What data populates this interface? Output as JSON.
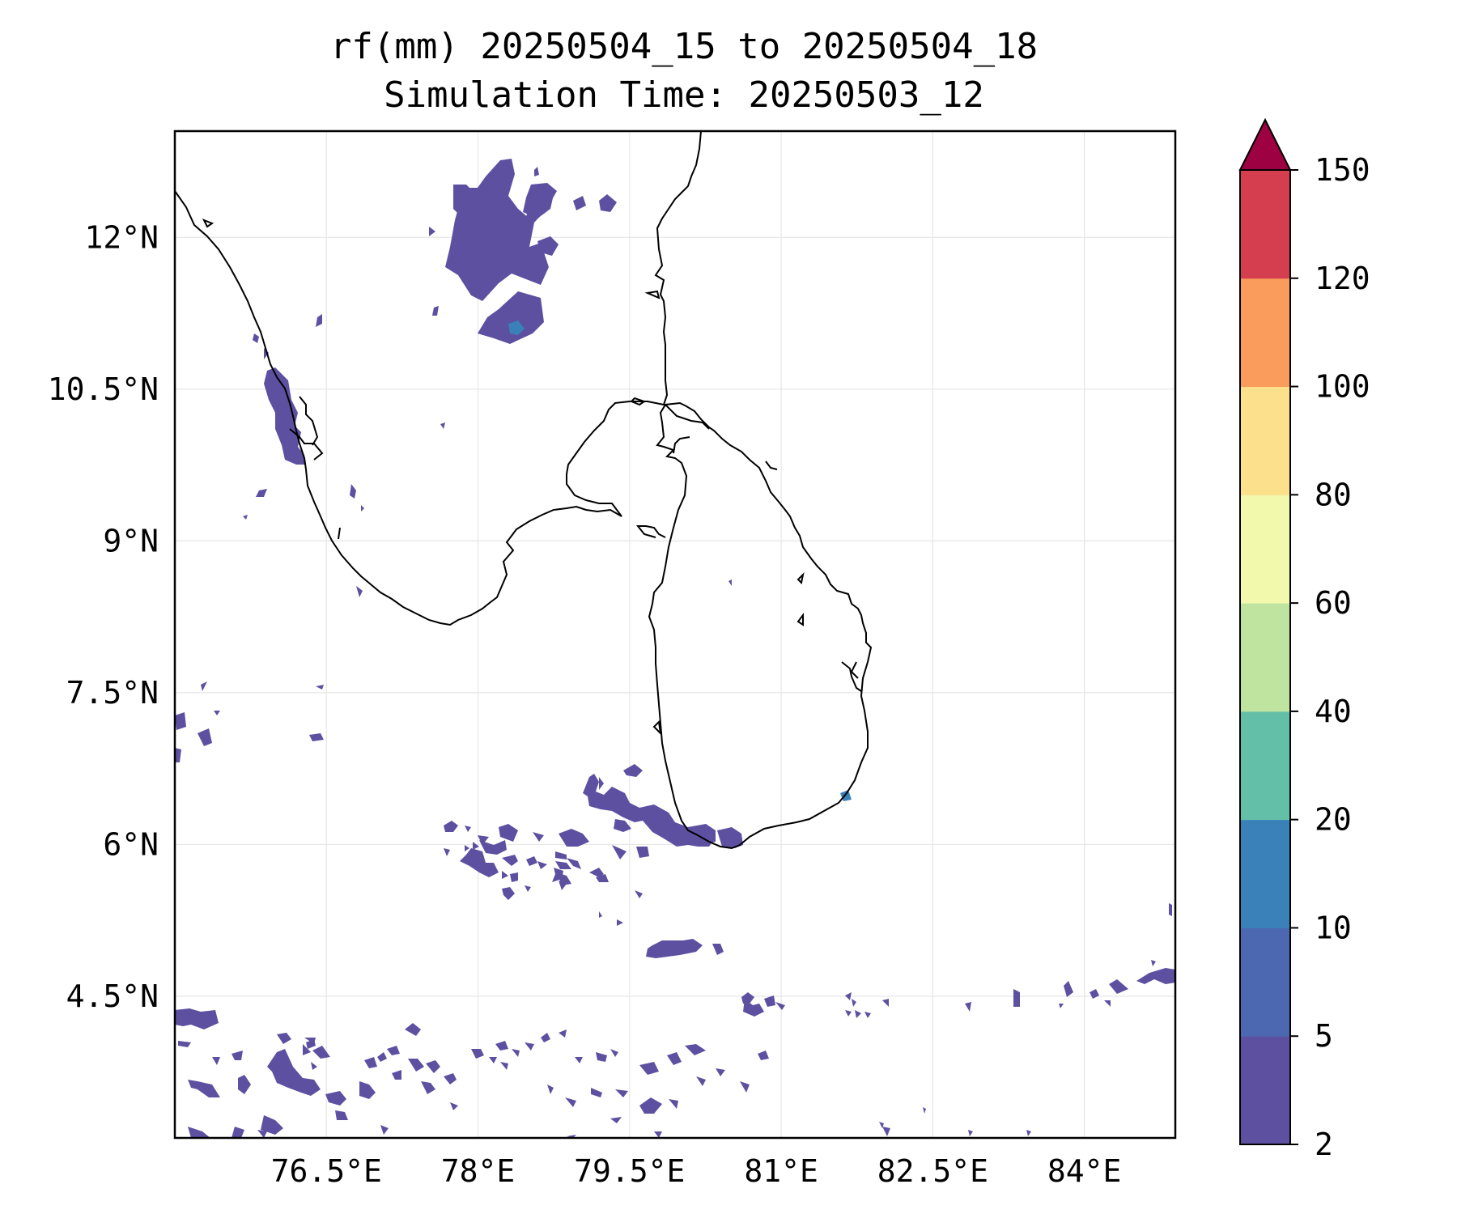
{
  "title": {
    "line1": "rf(mm) 20250504_15 to 20250504_18",
    "line2": "Simulation Time: 20250503_12"
  },
  "map": {
    "lon_range": [
      75,
      84.9
    ],
    "lat_range": [
      3.1,
      13.05
    ],
    "lon_ticks": [
      {
        "value": 76.5,
        "label": "76.5°E"
      },
      {
        "value": 78,
        "label": "78°E"
      },
      {
        "value": 79.5,
        "label": "79.5°E"
      },
      {
        "value": 81,
        "label": "81°E"
      },
      {
        "value": 82.5,
        "label": "82.5°E"
      },
      {
        "value": 84,
        "label": "84°E"
      }
    ],
    "lat_ticks": [
      {
        "value": 12,
        "label": "12°N"
      },
      {
        "value": 10.5,
        "label": "10.5°N"
      },
      {
        "value": 9,
        "label": "9°N"
      },
      {
        "value": 7.5,
        "label": "7.5°N"
      },
      {
        "value": 6,
        "label": "6°N"
      },
      {
        "value": 4.5,
        "label": "4.5°N"
      }
    ],
    "gridlines": true,
    "coastline_color": "#000000",
    "rain_color": "#5e50a1"
  },
  "colorbar": {
    "levels": [
      2,
      5,
      10,
      20,
      40,
      60,
      80,
      100,
      120,
      150
    ],
    "level_labels": [
      "2",
      "5",
      "10",
      "20",
      "40",
      "60",
      "80",
      "100",
      "120",
      "150"
    ],
    "colors": [
      "#5e50a1",
      "#4b68b0",
      "#3a80b9",
      "#64bfa8",
      "#bee4a0",
      "#f2f9ad",
      "#fce08b",
      "#f99c5c",
      "#d53e4f"
    ],
    "extend_color": "#9e0142",
    "extend": "max"
  }
}
